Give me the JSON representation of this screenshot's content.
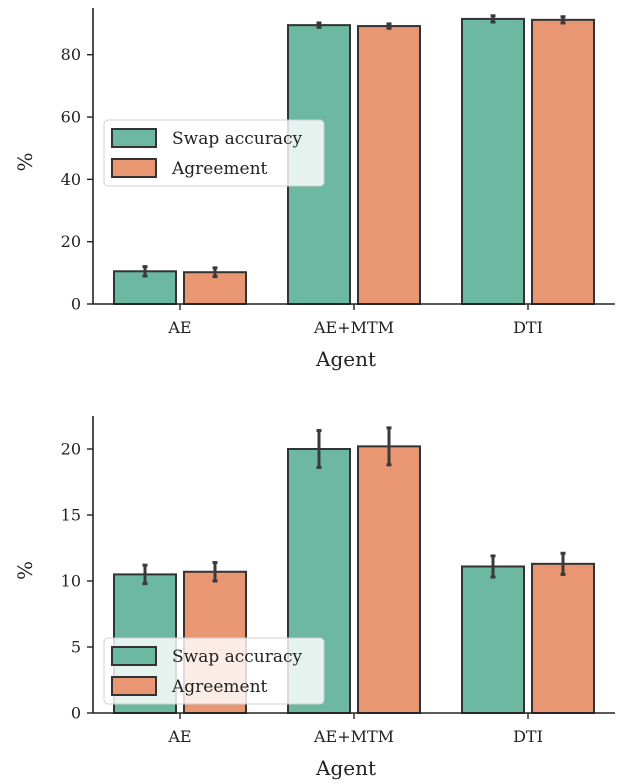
{
  "chart_data": [
    {
      "type": "bar",
      "xlabel": "Agent",
      "ylabel": "%",
      "ylim": [
        0,
        95
      ],
      "yticks": [
        0,
        20,
        40,
        60,
        80
      ],
      "categories": [
        "AE",
        "AE+MTM",
        "DTI"
      ],
      "series": [
        {
          "name": "Swap accuracy",
          "color": "#6db8a0",
          "values": [
            10.5,
            89.5,
            91.5
          ],
          "err": [
            1.5,
            0.7,
            1.0
          ]
        },
        {
          "name": "Agreement",
          "color": "#e99673",
          "values": [
            10.2,
            89.2,
            91.2
          ],
          "err": [
            1.4,
            0.7,
            1.0
          ]
        }
      ],
      "legend": "center-left"
    },
    {
      "type": "bar",
      "xlabel": "Agent",
      "ylabel": "%",
      "ylim": [
        0,
        22.5
      ],
      "yticks": [
        0,
        5,
        10,
        15,
        20
      ],
      "categories": [
        "AE",
        "AE+MTM",
        "DTI"
      ],
      "series": [
        {
          "name": "Swap accuracy",
          "color": "#6db8a0",
          "values": [
            10.5,
            20.0,
            11.1
          ],
          "err": [
            0.7,
            1.4,
            0.8
          ]
        },
        {
          "name": "Agreement",
          "color": "#e99673",
          "values": [
            10.7,
            20.2,
            11.3
          ],
          "err": [
            0.7,
            1.4,
            0.8
          ]
        }
      ],
      "legend": "lower-left"
    }
  ]
}
